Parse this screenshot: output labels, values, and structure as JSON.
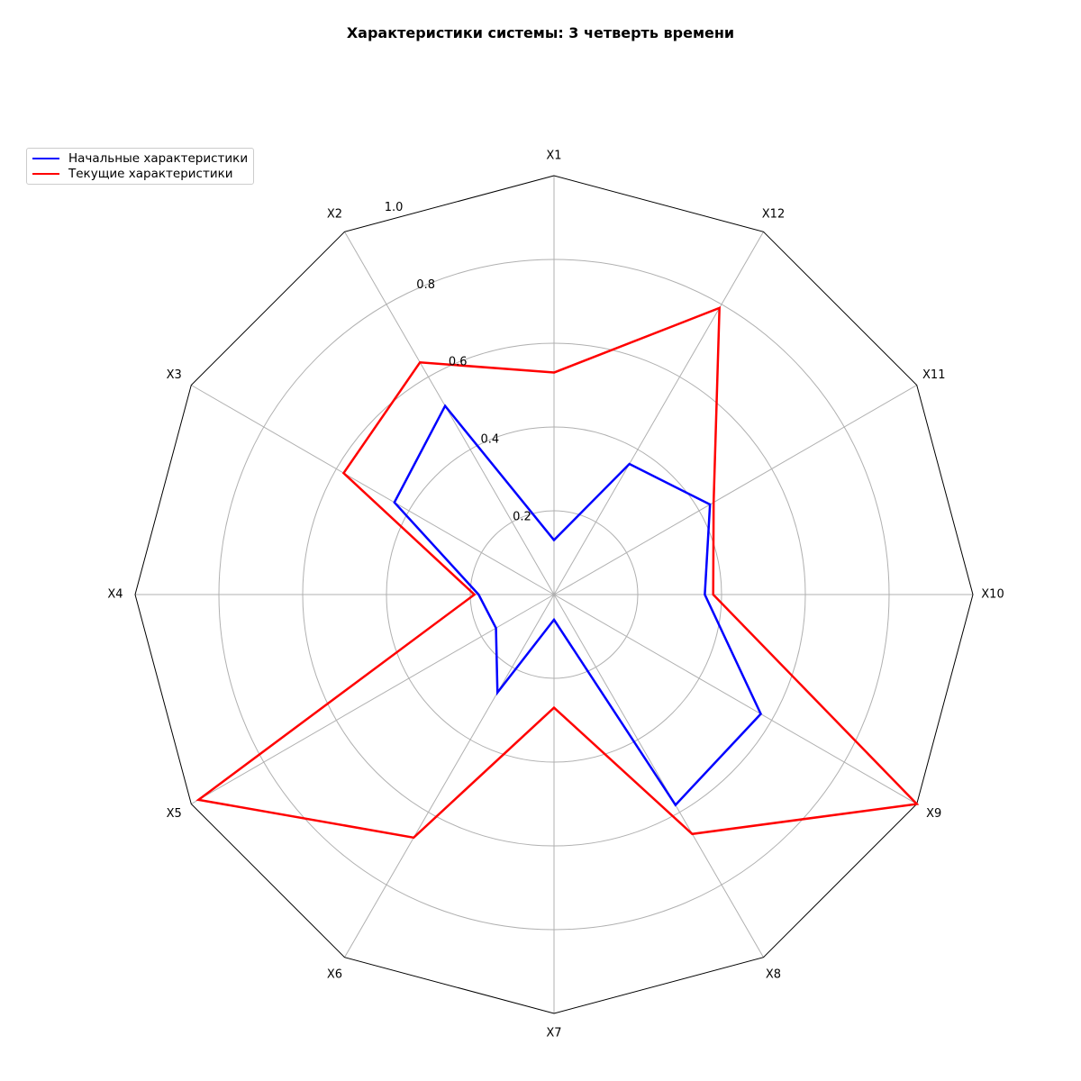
{
  "chart_data": {
    "type": "radar",
    "title": "Характеристики системы: 3 четверть времени",
    "categories": [
      "X1",
      "X2",
      "X3",
      "X4",
      "X5",
      "X6",
      "X7",
      "X8",
      "X9",
      "X10",
      "X11",
      "X12"
    ],
    "radial_ticks": [
      "0.2",
      "0.4",
      "0.6",
      "0.8",
      "1.0"
    ],
    "rlim": [
      0,
      1.0
    ],
    "grid": true,
    "legend_position": "top-left",
    "series": [
      {
        "name": "Начальные характеристики",
        "color": "#0000ff",
        "values": [
          0.13,
          0.52,
          0.44,
          0.18,
          0.16,
          0.27,
          0.06,
          0.58,
          0.57,
          0.36,
          0.43,
          0.36
        ]
      },
      {
        "name": "Текущие характеристики",
        "color": "#ff0000",
        "values": [
          0.53,
          0.64,
          0.58,
          0.19,
          0.98,
          0.67,
          0.27,
          0.66,
          1.0,
          0.38,
          0.44,
          0.79
        ]
      }
    ]
  }
}
